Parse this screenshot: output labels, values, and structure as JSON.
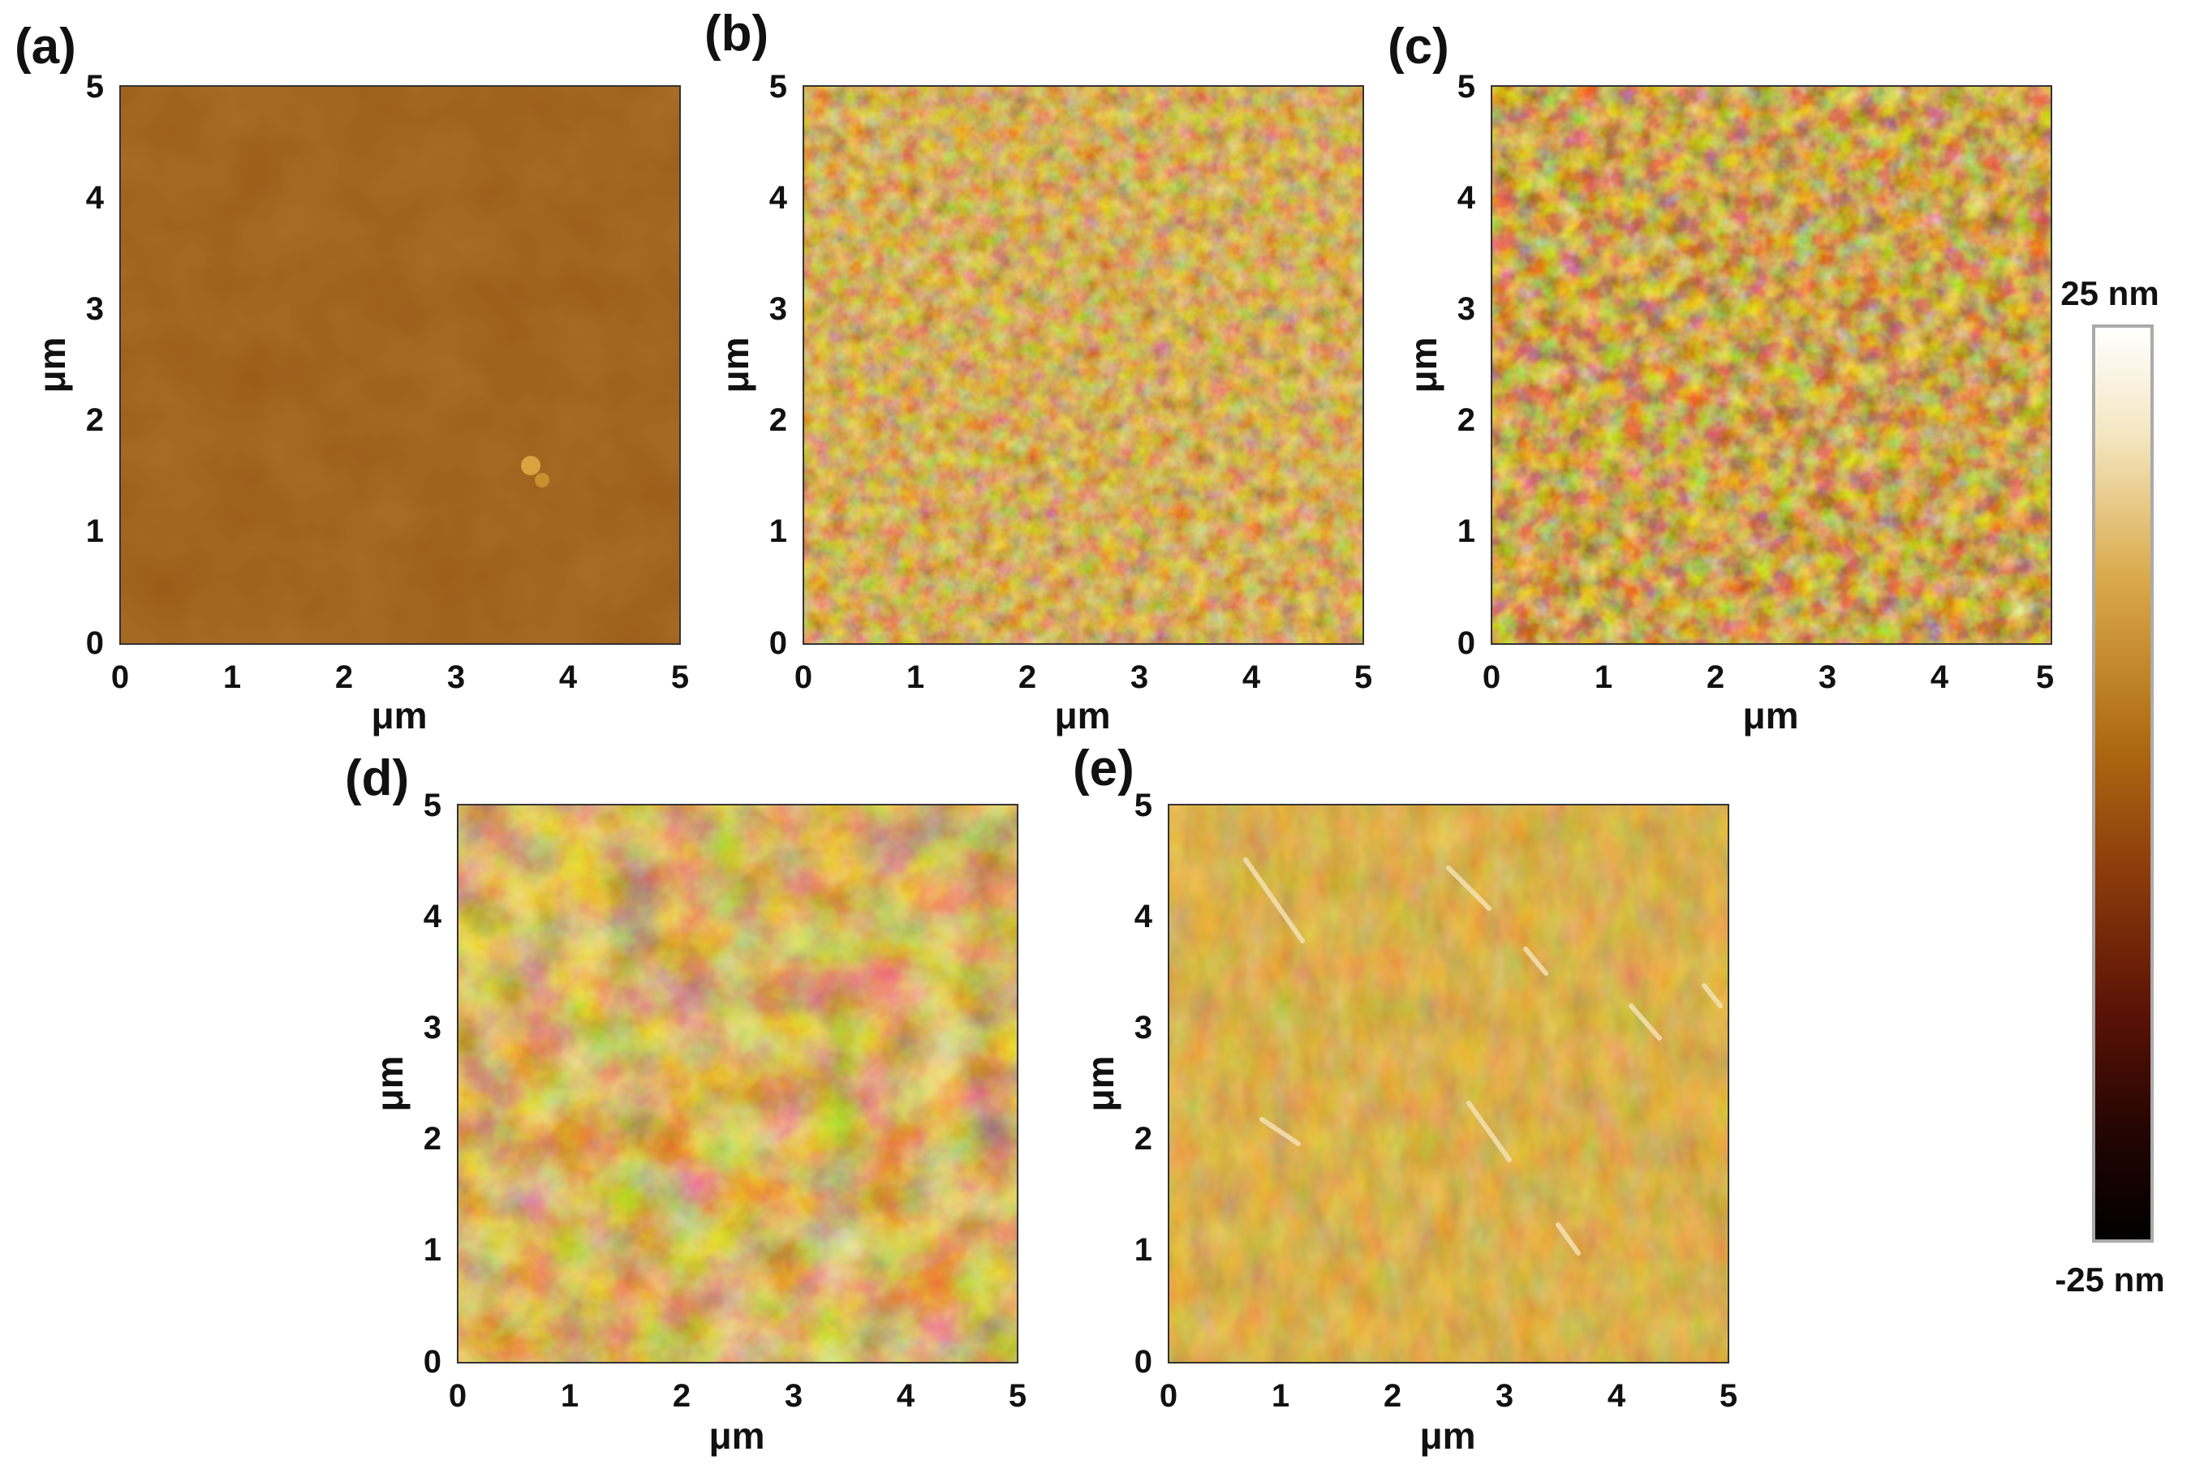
{
  "panels": [
    {
      "id": "a",
      "label": "(a)",
      "xlabel": "μm",
      "ylabel": "μm",
      "x_ticks": [
        "0",
        "1",
        "2",
        "3",
        "4",
        "5"
      ],
      "y_ticks": [
        "0",
        "1",
        "2",
        "3",
        "4",
        "5"
      ],
      "surface": "smooth, nearly uniform"
    },
    {
      "id": "b",
      "label": "(b)",
      "xlabel": "μm",
      "ylabel": "μm",
      "x_ticks": [
        "0",
        "1",
        "2",
        "3",
        "4",
        "5"
      ],
      "y_ticks": [
        "0",
        "1",
        "2",
        "3",
        "4",
        "5"
      ],
      "surface": "fine granular"
    },
    {
      "id": "c",
      "label": "(c)",
      "xlabel": "μm",
      "ylabel": "μm",
      "x_ticks": [
        "0",
        "1",
        "2",
        "3",
        "4",
        "5"
      ],
      "y_ticks": [
        "0",
        "1",
        "2",
        "3",
        "4",
        "5"
      ],
      "surface": "granular, higher contrast"
    },
    {
      "id": "d",
      "label": "(d)",
      "xlabel": "μm",
      "ylabel": "μm",
      "x_ticks": [
        "0",
        "1",
        "2",
        "3",
        "4",
        "5"
      ],
      "y_ticks": [
        "0",
        "1",
        "2",
        "3",
        "4",
        "5"
      ],
      "surface": "mottled with pits"
    },
    {
      "id": "e",
      "label": "(e)",
      "xlabel": "μm",
      "ylabel": "μm",
      "x_ticks": [
        "0",
        "1",
        "2",
        "3",
        "4",
        "5"
      ],
      "y_ticks": [
        "0",
        "1",
        "2",
        "3",
        "4",
        "5"
      ],
      "surface": "grains with diagonal streaks"
    }
  ],
  "colorbar": {
    "max_label": "25 nm",
    "min_label": "-25 nm",
    "colors": [
      "#ffffff",
      "#f2e0b0",
      "#d09a30",
      "#a86410",
      "#8a3a0a",
      "#6a1808",
      "#3a0a04",
      "#000000"
    ]
  }
}
